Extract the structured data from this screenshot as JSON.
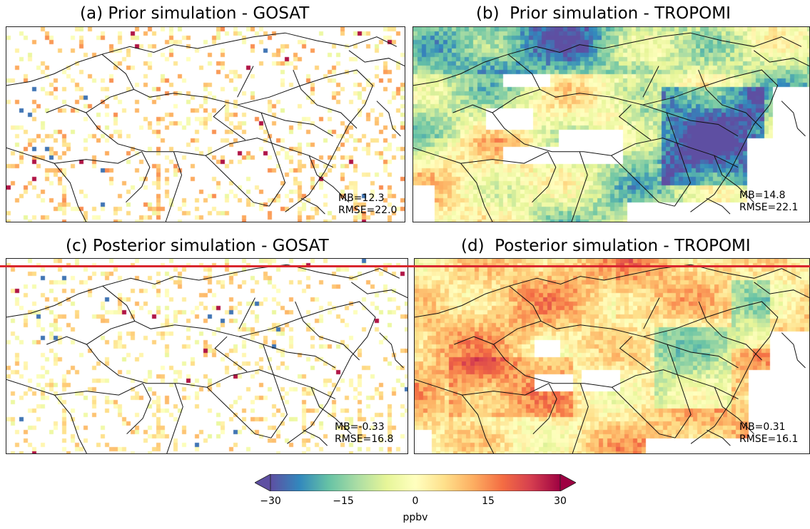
{
  "panels": [
    {
      "key": "a",
      "title": "(a) Prior simulation - GOSAT",
      "stats": {
        "mb": "MB=12.3",
        "rmse": "RMSE=22.0"
      },
      "product": "GOSAT",
      "mean_bias": 12.3,
      "rmse": 22.0
    },
    {
      "key": "b",
      "title": "(b)  Prior simulation - TROPOMI",
      "stats": {
        "mb": "MB=14.8",
        "rmse": "RMSE=22.1"
      },
      "product": "TROPOMI",
      "mean_bias": 14.8,
      "rmse": 22.1
    },
    {
      "key": "c",
      "title": "(c) Posterior simulation - GOSAT",
      "stats": {
        "mb": "MB=-0.33",
        "rmse": "RMSE=16.8"
      },
      "product": "GOSAT",
      "mean_bias": -0.33,
      "rmse": 16.8
    },
    {
      "key": "d",
      "title": "(d)  Posterior simulation - TROPOMI",
      "stats": {
        "mb": "MB=0.31",
        "rmse": "RMSE=16.1"
      },
      "product": "TROPOMI",
      "mean_bias": 0.31,
      "rmse": 16.1
    }
  ],
  "colorbar": {
    "label": "ppbv",
    "ticks": [
      "−30",
      "−15",
      "0",
      "15",
      "30"
    ],
    "range": [
      -30,
      30
    ],
    "colormap": "Spectral_r",
    "extend": "both",
    "colors": [
      "#5e4fa2",
      "#3288bd",
      "#66c2a5",
      "#abdda4",
      "#e6f598",
      "#ffffbf",
      "#fee08b",
      "#fdae61",
      "#f46d43",
      "#d53e4f",
      "#9e0142"
    ]
  },
  "annotation_line_color": "#d9262e"
}
